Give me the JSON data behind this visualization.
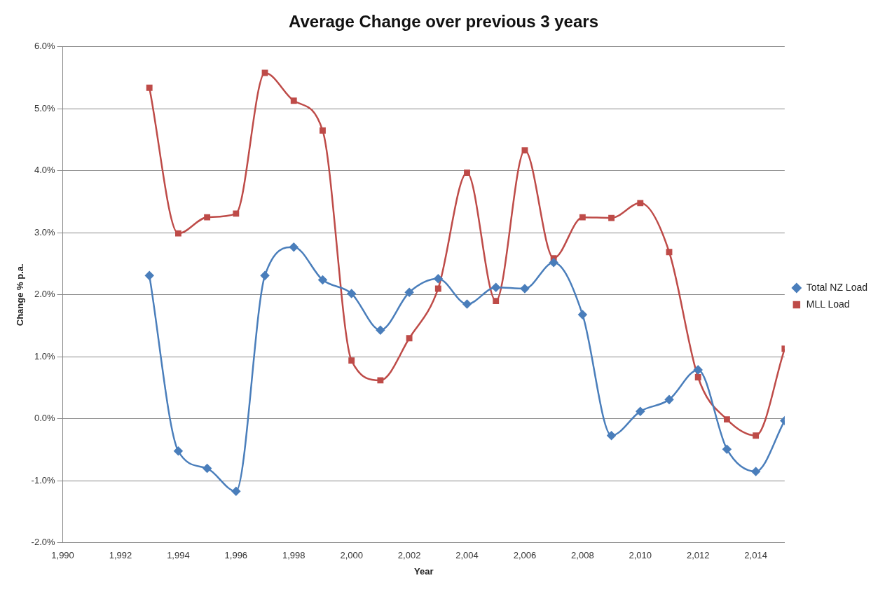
{
  "chart_data": {
    "type": "line",
    "title": "Average Change over previous 3 years",
    "xlabel": "Year",
    "ylabel": "Change % p.a.",
    "x": [
      1993,
      1994,
      1995,
      1996,
      1997,
      1998,
      1999,
      2000,
      2001,
      2002,
      2003,
      2004,
      2005,
      2006,
      2007,
      2008,
      2009,
      2010,
      2011,
      2012,
      2013,
      2014,
      2015
    ],
    "series": [
      {
        "name": "Total NZ Load",
        "color": "#4a7ebb",
        "marker": "diamond",
        "values": [
          2.31,
          -0.52,
          -0.8,
          -1.17,
          2.31,
          2.77,
          2.24,
          2.02,
          1.43,
          2.04,
          2.26,
          1.85,
          2.12,
          2.1,
          2.52,
          1.68,
          -0.27,
          0.12,
          0.31,
          0.79,
          -0.49,
          -0.85,
          -0.03
        ]
      },
      {
        "name": "MLL Load",
        "color": "#be4b48",
        "marker": "square",
        "values": [
          5.34,
          2.99,
          3.25,
          3.31,
          5.58,
          5.13,
          4.65,
          0.94,
          0.62,
          1.3,
          2.1,
          3.97,
          1.9,
          4.33,
          2.59,
          3.25,
          3.24,
          3.48,
          2.69,
          0.67,
          -0.01,
          -0.27,
          1.13
        ]
      }
    ],
    "xlim": [
      1990,
      2015
    ],
    "xticks": [
      {
        "value": 1990,
        "label": "1,990"
      },
      {
        "value": 1992,
        "label": "1,992"
      },
      {
        "value": 1994,
        "label": "1,994"
      },
      {
        "value": 1996,
        "label": "1,996"
      },
      {
        "value": 1998,
        "label": "1,998"
      },
      {
        "value": 2000,
        "label": "2,000"
      },
      {
        "value": 2002,
        "label": "2,002"
      },
      {
        "value": 2004,
        "label": "2,004"
      },
      {
        "value": 2006,
        "label": "2,006"
      },
      {
        "value": 2008,
        "label": "2,008"
      },
      {
        "value": 2010,
        "label": "2,010"
      },
      {
        "value": 2012,
        "label": "2,012"
      },
      {
        "value": 2014,
        "label": "2,014"
      }
    ],
    "ylim": [
      -2,
      6
    ],
    "yticks": [
      {
        "value": -2,
        "label": "-2.0%"
      },
      {
        "value": -1,
        "label": "-1.0%"
      },
      {
        "value": 0,
        "label": "0.0%"
      },
      {
        "value": 1,
        "label": "1.0%"
      },
      {
        "value": 2,
        "label": "2.0%"
      },
      {
        "value": 3,
        "label": "3.0%"
      },
      {
        "value": 4,
        "label": "4.0%"
      },
      {
        "value": 5,
        "label": "5.0%"
      },
      {
        "value": 6,
        "label": "6.0%"
      }
    ],
    "grid": "y",
    "legend": "right",
    "line_style": "solid"
  }
}
